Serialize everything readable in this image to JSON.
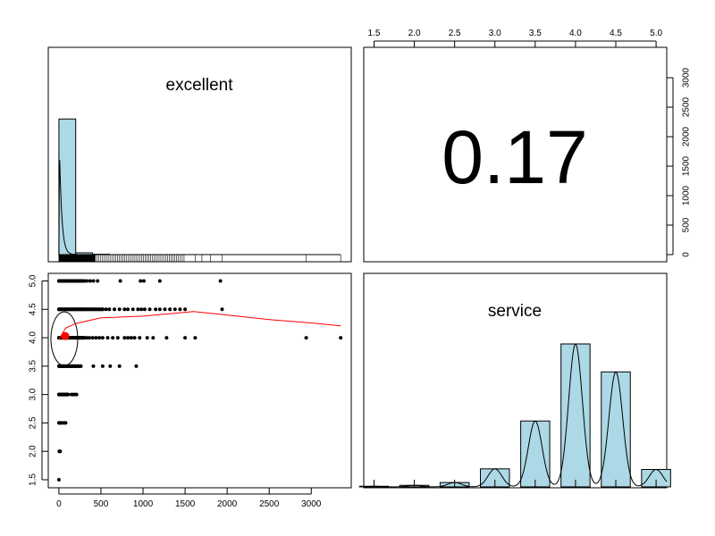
{
  "chart_data": {
    "type": "scatter",
    "subtype": "pairs-matrix",
    "panels": {
      "diag_excellent": {
        "label": "excellent",
        "type": "histogram",
        "xlim": [
          0,
          3350
        ],
        "bins": [
          {
            "start": 0,
            "end": 200,
            "count": 2300
          },
          {
            "start": 200,
            "end": 400,
            "count": 30
          },
          {
            "start": 400,
            "end": 600,
            "count": 6
          }
        ],
        "density_curve": true,
        "rug": true
      },
      "corr": {
        "label": "0.17",
        "value": 0.17
      },
      "diag_service": {
        "label": "service",
        "type": "histogram",
        "bins": [
          {
            "x": 1.5,
            "count": 10
          },
          {
            "x": 2.0,
            "count": 25
          },
          {
            "x": 2.5,
            "count": 70
          },
          {
            "x": 3.0,
            "count": 290
          },
          {
            "x": 3.5,
            "count": 1060
          },
          {
            "x": 4.0,
            "count": 2300
          },
          {
            "x": 4.5,
            "count": 1850
          },
          {
            "x": 5.0,
            "count": 280
          }
        ],
        "density_curve": true,
        "rug": true
      },
      "scatter": {
        "xlim": [
          -130,
          3400
        ],
        "ylim": [
          1.4,
          5.1
        ],
        "smooth_line_color": "#ff0000",
        "ellipse": true,
        "mean_point": {
          "x": 75,
          "y": 4.03
        },
        "points": [
          [
            0,
            1.5
          ],
          [
            5,
            2.0
          ],
          [
            10,
            2.0
          ],
          [
            15,
            2.0
          ],
          [
            0,
            2.5
          ],
          [
            10,
            2.5
          ],
          [
            20,
            2.5
          ],
          [
            40,
            2.5
          ],
          [
            60,
            2.5
          ],
          [
            80,
            2.5
          ],
          [
            0,
            3.0
          ],
          [
            15,
            3.0
          ],
          [
            30,
            3.0
          ],
          [
            45,
            3.0
          ],
          [
            60,
            3.0
          ],
          [
            75,
            3.0
          ],
          [
            90,
            3.0
          ],
          [
            105,
            3.0
          ],
          [
            150,
            3.0
          ],
          [
            170,
            3.0
          ],
          [
            190,
            3.0
          ],
          [
            210,
            3.0
          ],
          [
            0,
            3.5
          ],
          [
            20,
            3.5
          ],
          [
            40,
            3.5
          ],
          [
            60,
            3.5
          ],
          [
            80,
            3.5
          ],
          [
            100,
            3.5
          ],
          [
            120,
            3.5
          ],
          [
            140,
            3.5
          ],
          [
            160,
            3.5
          ],
          [
            180,
            3.5
          ],
          [
            200,
            3.5
          ],
          [
            230,
            3.5
          ],
          [
            260,
            3.5
          ],
          [
            410,
            3.5
          ],
          [
            520,
            3.5
          ],
          [
            610,
            3.5
          ],
          [
            720,
            3.5
          ],
          [
            920,
            3.5
          ],
          [
            0,
            4.0
          ],
          [
            20,
            4.0
          ],
          [
            40,
            4.0
          ],
          [
            60,
            4.0
          ],
          [
            80,
            4.0
          ],
          [
            100,
            4.0
          ],
          [
            120,
            4.0
          ],
          [
            140,
            4.0
          ],
          [
            160,
            4.0
          ],
          [
            180,
            4.0
          ],
          [
            200,
            4.0
          ],
          [
            220,
            4.0
          ],
          [
            240,
            4.0
          ],
          [
            260,
            4.0
          ],
          [
            280,
            4.0
          ],
          [
            300,
            4.0
          ],
          [
            330,
            4.0
          ],
          [
            360,
            4.0
          ],
          [
            400,
            4.0
          ],
          [
            440,
            4.0
          ],
          [
            480,
            4.0
          ],
          [
            520,
            4.0
          ],
          [
            580,
            4.0
          ],
          [
            640,
            4.0
          ],
          [
            700,
            4.0
          ],
          [
            780,
            4.0
          ],
          [
            820,
            4.0
          ],
          [
            860,
            4.0
          ],
          [
            900,
            4.0
          ],
          [
            960,
            4.0
          ],
          [
            1050,
            4.0
          ],
          [
            1120,
            4.0
          ],
          [
            1280,
            4.0
          ],
          [
            1500,
            4.0
          ],
          [
            1620,
            4.0
          ],
          [
            2940,
            4.0
          ],
          [
            3350,
            4.0
          ],
          [
            0,
            4.5
          ],
          [
            20,
            4.5
          ],
          [
            40,
            4.5
          ],
          [
            60,
            4.5
          ],
          [
            80,
            4.5
          ],
          [
            100,
            4.5
          ],
          [
            120,
            4.5
          ],
          [
            140,
            4.5
          ],
          [
            160,
            4.5
          ],
          [
            180,
            4.5
          ],
          [
            200,
            4.5
          ],
          [
            220,
            4.5
          ],
          [
            240,
            4.5
          ],
          [
            260,
            4.5
          ],
          [
            280,
            4.5
          ],
          [
            300,
            4.5
          ],
          [
            330,
            4.5
          ],
          [
            360,
            4.5
          ],
          [
            400,
            4.5
          ],
          [
            440,
            4.5
          ],
          [
            480,
            4.5
          ],
          [
            520,
            4.5
          ],
          [
            560,
            4.5
          ],
          [
            600,
            4.5
          ],
          [
            660,
            4.5
          ],
          [
            720,
            4.5
          ],
          [
            780,
            4.5
          ],
          [
            820,
            4.5
          ],
          [
            880,
            4.5
          ],
          [
            940,
            4.5
          ],
          [
            980,
            4.5
          ],
          [
            1020,
            4.5
          ],
          [
            1080,
            4.5
          ],
          [
            1150,
            4.5
          ],
          [
            1200,
            4.5
          ],
          [
            1260,
            4.5
          ],
          [
            1320,
            4.5
          ],
          [
            1380,
            4.5
          ],
          [
            1440,
            4.5
          ],
          [
            1500,
            4.5
          ],
          [
            1940,
            4.5
          ],
          [
            0,
            5.0
          ],
          [
            20,
            5.0
          ],
          [
            40,
            5.0
          ],
          [
            60,
            5.0
          ],
          [
            80,
            5.0
          ],
          [
            100,
            5.0
          ],
          [
            120,
            5.0
          ],
          [
            140,
            5.0
          ],
          [
            160,
            5.0
          ],
          [
            180,
            5.0
          ],
          [
            200,
            5.0
          ],
          [
            220,
            5.0
          ],
          [
            240,
            5.0
          ],
          [
            260,
            5.0
          ],
          [
            290,
            5.0
          ],
          [
            330,
            5.0
          ],
          [
            370,
            5.0
          ],
          [
            410,
            5.0
          ],
          [
            460,
            5.0
          ],
          [
            730,
            5.0
          ],
          [
            970,
            5.0
          ],
          [
            1010,
            5.0
          ],
          [
            1200,
            5.0
          ],
          [
            1920,
            5.0
          ]
        ],
        "smooth_line": [
          [
            0,
            3.97
          ],
          [
            80,
            4.17
          ],
          [
            200,
            4.25
          ],
          [
            500,
            4.35
          ],
          [
            1000,
            4.38
          ],
          [
            1600,
            4.46
          ],
          [
            2000,
            4.4
          ],
          [
            2500,
            4.32
          ],
          [
            3000,
            4.26
          ],
          [
            3350,
            4.21
          ]
        ]
      }
    },
    "axes": {
      "top_x_ticks": [
        "1.5",
        "2.0",
        "2.5",
        "3.0",
        "3.5",
        "4.0",
        "4.5",
        "5.0"
      ],
      "right_y_ticks": [
        "0",
        "500",
        "1000",
        "1500",
        "2000",
        "2500",
        "3000"
      ],
      "left_y_ticks": [
        "1.5",
        "2.0",
        "2.5",
        "3.0",
        "3.5",
        "4.0",
        "4.5",
        "5.0"
      ],
      "bottom_x_ticks": [
        "0",
        "500",
        "1000",
        "1500",
        "2000",
        "2500",
        "3000"
      ]
    },
    "colors": {
      "hist_fill": "#add8e6",
      "points": "#000000",
      "smooth": "#ff0000",
      "mean_point": "#ff0000"
    }
  }
}
